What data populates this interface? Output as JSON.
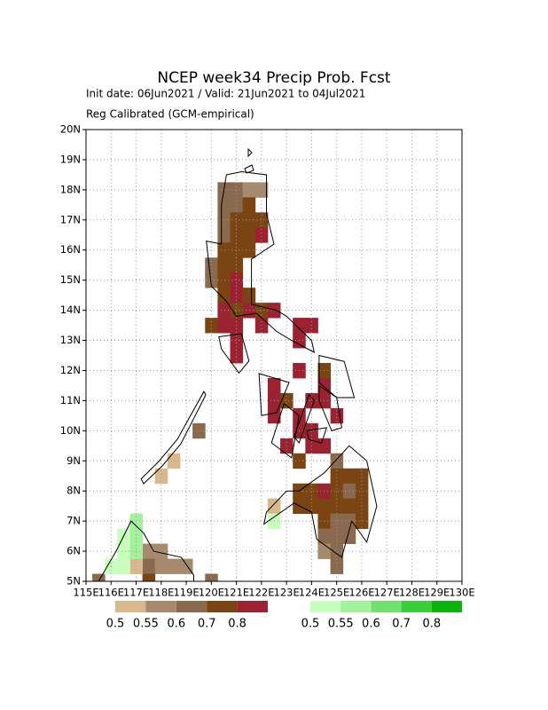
{
  "map": {
    "title": "NCEP week34 Precip Prob. Fcst",
    "subtitle_lines": [
      "Init date: 06Jun2021 / Valid: 21Jun2021 to 04Jul2021",
      "Reg Calibrated (GCM-empirical)"
    ],
    "xlim": [
      115,
      130
    ],
    "ylim": [
      5,
      20
    ],
    "xticks": [
      {
        "value": 115,
        "label": "115E"
      },
      {
        "value": 116,
        "label": "116E"
      },
      {
        "value": 117,
        "label": "117E"
      },
      {
        "value": 118,
        "label": "118E"
      },
      {
        "value": 119,
        "label": "119E"
      },
      {
        "value": 120,
        "label": "120E"
      },
      {
        "value": 121,
        "label": "121E"
      },
      {
        "value": 122,
        "label": "122E"
      },
      {
        "value": 123,
        "label": "123E"
      },
      {
        "value": 124,
        "label": "124E"
      },
      {
        "value": 125,
        "label": "125E"
      },
      {
        "value": 126,
        "label": "126E"
      },
      {
        "value": 127,
        "label": "127E"
      },
      {
        "value": 128,
        "label": "128E"
      },
      {
        "value": 129,
        "label": "129E"
      },
      {
        "value": 130,
        "label": "130E"
      }
    ],
    "yticks": [
      {
        "value": 5,
        "label": "5N"
      },
      {
        "value": 6,
        "label": "6N"
      },
      {
        "value": 7,
        "label": "7N"
      },
      {
        "value": 8,
        "label": "8N"
      },
      {
        "value": 9,
        "label": "9N"
      },
      {
        "value": 10,
        "label": "10N"
      },
      {
        "value": 11,
        "label": "11N"
      },
      {
        "value": 12,
        "label": "12N"
      },
      {
        "value": 13,
        "label": "13N"
      },
      {
        "value": 14,
        "label": "14N"
      },
      {
        "value": 15,
        "label": "15N"
      },
      {
        "value": 16,
        "label": "16N"
      },
      {
        "value": 17,
        "label": "17N"
      },
      {
        "value": 18,
        "label": "18N"
      },
      {
        "value": 19,
        "label": "19N"
      },
      {
        "value": 20,
        "label": "20N"
      }
    ],
    "grid": true,
    "cell_size": 0.5,
    "levels": [
      0.5,
      0.55,
      0.6,
      0.7,
      0.8
    ],
    "dry_colors": [
      "#d8b88c",
      "#a78a6e",
      "#8a6a4f",
      "#7a4512",
      "#9b2230"
    ],
    "wet_colors": [
      "#c8ffbe",
      "#a2f29c",
      "#72e070",
      "#3ccc3c",
      "#0eb20e"
    ],
    "dry_cells": [
      [
        120.5,
        18.0,
        0.6
      ],
      [
        121.0,
        18.0,
        0.6
      ],
      [
        121.5,
        18.0,
        0.55
      ],
      [
        122.0,
        18.0,
        0.55
      ],
      [
        120.5,
        17.5,
        0.6
      ],
      [
        121.0,
        17.5,
        0.6
      ],
      [
        121.5,
        17.5,
        0.7
      ],
      [
        120.5,
        17.0,
        0.6
      ],
      [
        121.0,
        17.0,
        0.7
      ],
      [
        121.5,
        17.0,
        0.7
      ],
      [
        122.0,
        17.0,
        0.7
      ],
      [
        120.5,
        16.5,
        0.6
      ],
      [
        121.0,
        16.5,
        0.7
      ],
      [
        121.5,
        16.5,
        0.7
      ],
      [
        122.0,
        16.5,
        0.8
      ],
      [
        120.5,
        16.0,
        0.7
      ],
      [
        121.0,
        16.0,
        0.7
      ],
      [
        121.5,
        16.0,
        0.7
      ],
      [
        120.0,
        15.5,
        0.6
      ],
      [
        120.5,
        15.5,
        0.7
      ],
      [
        121.0,
        15.5,
        0.7
      ],
      [
        120.0,
        15.0,
        0.6
      ],
      [
        120.5,
        15.0,
        0.7
      ],
      [
        121.0,
        15.0,
        0.8
      ],
      [
        120.5,
        14.5,
        0.7
      ],
      [
        121.0,
        14.5,
        0.8
      ],
      [
        121.5,
        14.5,
        0.7
      ],
      [
        120.5,
        14.0,
        0.8
      ],
      [
        121.0,
        14.0,
        0.7
      ],
      [
        121.5,
        14.0,
        0.8
      ],
      [
        122.0,
        14.0,
        0.7
      ],
      [
        122.5,
        14.0,
        0.8
      ],
      [
        120.0,
        13.5,
        0.7
      ],
      [
        120.5,
        13.5,
        0.8
      ],
      [
        121.0,
        13.5,
        0.8
      ],
      [
        122.0,
        13.5,
        0.8
      ],
      [
        123.5,
        13.5,
        0.8
      ],
      [
        124.0,
        13.5,
        0.8
      ],
      [
        121.0,
        13.0,
        0.8
      ],
      [
        123.5,
        13.0,
        0.8
      ],
      [
        121.0,
        12.5,
        0.8
      ],
      [
        123.5,
        12.0,
        0.8
      ],
      [
        124.5,
        12.0,
        0.7
      ],
      [
        122.5,
        11.5,
        0.8
      ],
      [
        124.5,
        11.5,
        0.8
      ],
      [
        122.5,
        11.0,
        0.8
      ],
      [
        123.0,
        11.0,
        0.7
      ],
      [
        124.0,
        11.0,
        0.8
      ],
      [
        124.5,
        11.0,
        0.8
      ],
      [
        122.5,
        10.5,
        0.8
      ],
      [
        123.5,
        10.5,
        0.8
      ],
      [
        125.0,
        10.5,
        0.8
      ],
      [
        123.5,
        10.0,
        0.8
      ],
      [
        124.0,
        10.0,
        0.8
      ],
      [
        119.5,
        10.0,
        0.6
      ],
      [
        123.0,
        9.5,
        0.8
      ],
      [
        124.0,
        9.5,
        0.8
      ],
      [
        124.5,
        9.5,
        0.8
      ],
      [
        123.5,
        9.0,
        0.7
      ],
      [
        125.0,
        9.0,
        0.6
      ],
      [
        118.5,
        9.0,
        0.5
      ],
      [
        125.0,
        8.5,
        0.7
      ],
      [
        125.5,
        8.5,
        0.7
      ],
      [
        126.0,
        8.5,
        0.7
      ],
      [
        118.0,
        8.5,
        0.5
      ],
      [
        123.5,
        8.0,
        0.7
      ],
      [
        124.0,
        8.0,
        0.7
      ],
      [
        124.5,
        8.0,
        0.8
      ],
      [
        125.0,
        8.0,
        0.7
      ],
      [
        125.5,
        8.0,
        0.6
      ],
      [
        126.0,
        8.0,
        0.7
      ],
      [
        123.5,
        7.5,
        0.7
      ],
      [
        124.0,
        7.5,
        0.7
      ],
      [
        124.5,
        7.5,
        0.7
      ],
      [
        125.0,
        7.5,
        0.7
      ],
      [
        125.5,
        7.5,
        0.7
      ],
      [
        126.0,
        7.5,
        0.7
      ],
      [
        122.5,
        7.5,
        0.5
      ],
      [
        124.5,
        7.0,
        0.7
      ],
      [
        125.0,
        7.0,
        0.6
      ],
      [
        125.5,
        7.0,
        0.6
      ],
      [
        126.0,
        7.0,
        0.7
      ],
      [
        124.5,
        6.5,
        0.6
      ],
      [
        125.0,
        6.5,
        0.6
      ],
      [
        125.5,
        6.5,
        0.6
      ],
      [
        124.5,
        6.0,
        0.55
      ],
      [
        125.0,
        6.0,
        0.6
      ],
      [
        125.0,
        5.5,
        0.6
      ],
      [
        117.5,
        6.0,
        0.55
      ],
      [
        118.0,
        6.0,
        0.55
      ],
      [
        117.5,
        5.5,
        0.6
      ],
      [
        118.0,
        5.5,
        0.55
      ],
      [
        118.5,
        5.5,
        0.55
      ],
      [
        119.0,
        5.5,
        0.55
      ],
      [
        117.0,
        5.5,
        0.5
      ],
      [
        115.5,
        5.0,
        0.6
      ],
      [
        117.5,
        5.0,
        0.7
      ],
      [
        120.0,
        5.0,
        0.6
      ]
    ],
    "wet_cells": [
      [
        117.0,
        7.0,
        0.55
      ],
      [
        116.5,
        6.5,
        0.5
      ],
      [
        117.0,
        6.5,
        0.55
      ],
      [
        116.5,
        6.0,
        0.5
      ],
      [
        117.0,
        6.0,
        0.55
      ],
      [
        116.5,
        5.5,
        0.5
      ],
      [
        116.0,
        5.5,
        0.5
      ],
      [
        122.5,
        7.0,
        0.5
      ]
    ],
    "legend_dry_labels": [
      "0.5",
      "0.55",
      "0.6",
      "0.7",
      "0.8"
    ],
    "legend_wet_labels": [
      "0.5",
      "0.55",
      "0.6",
      "0.7",
      "0.8"
    ]
  }
}
